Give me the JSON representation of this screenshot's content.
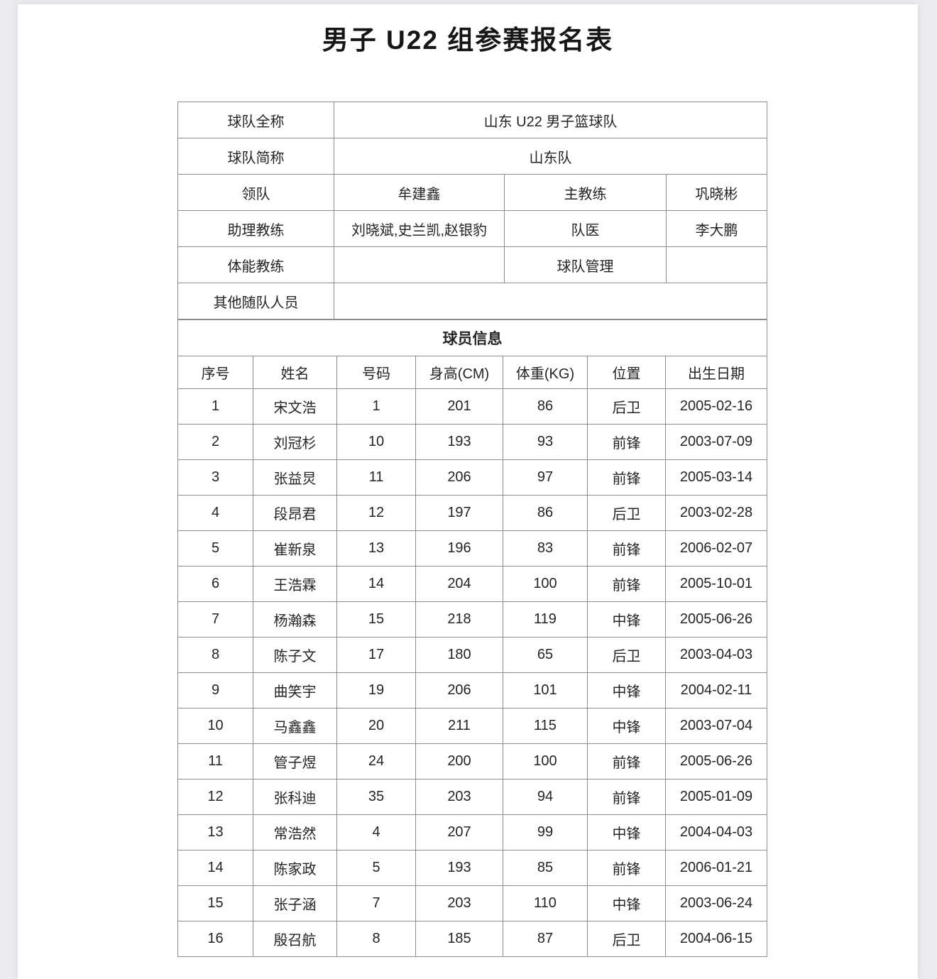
{
  "page": {
    "title": "男子 U22 组参赛报名表"
  },
  "colors": {
    "border": "#8d8d8d",
    "text": "#242424",
    "page_bg": "#ffffff",
    "backdrop": "#e9ebee"
  },
  "team_info": {
    "full_name_label": "球队全称",
    "full_name": "山东 U22 男子篮球队",
    "short_name_label": "球队简称",
    "short_name": "山东队",
    "leader_label": "领队",
    "leader": "牟建鑫",
    "head_coach_label": "主教练",
    "head_coach": "巩晓彬",
    "assistant_coach_label": "助理教练",
    "assistant_coach": "刘晓斌,史兰凯,赵银豹",
    "team_doctor_label": "队医",
    "team_doctor": "李大鹏",
    "fitness_coach_label": "体能教练",
    "fitness_coach": "",
    "team_manager_label": "球队管理",
    "team_manager": "",
    "other_staff_label": "其他随队人员",
    "other_staff": ""
  },
  "players": {
    "section_title": "球员信息",
    "headers": [
      "序号",
      "姓名",
      "号码",
      "身高(CM)",
      "体重(KG)",
      "位置",
      "出生日期"
    ],
    "rows": [
      {
        "no": "1",
        "name": "宋文浩",
        "number": "1",
        "height": "201",
        "weight": "86",
        "position": "后卫",
        "birth": "2005-02-16"
      },
      {
        "no": "2",
        "name": "刘冠杉",
        "number": "10",
        "height": "193",
        "weight": "93",
        "position": "前锋",
        "birth": "2003-07-09"
      },
      {
        "no": "3",
        "name": "张益炅",
        "number": "11",
        "height": "206",
        "weight": "97",
        "position": "前锋",
        "birth": "2005-03-14"
      },
      {
        "no": "4",
        "name": "段昂君",
        "number": "12",
        "height": "197",
        "weight": "86",
        "position": "后卫",
        "birth": "2003-02-28"
      },
      {
        "no": "5",
        "name": "崔新泉",
        "number": "13",
        "height": "196",
        "weight": "83",
        "position": "前锋",
        "birth": "2006-02-07"
      },
      {
        "no": "6",
        "name": "王浩霖",
        "number": "14",
        "height": "204",
        "weight": "100",
        "position": "前锋",
        "birth": "2005-10-01"
      },
      {
        "no": "7",
        "name": "杨瀚森",
        "number": "15",
        "height": "218",
        "weight": "119",
        "position": "中锋",
        "birth": "2005-06-26"
      },
      {
        "no": "8",
        "name": "陈子文",
        "number": "17",
        "height": "180",
        "weight": "65",
        "position": "后卫",
        "birth": "2003-04-03"
      },
      {
        "no": "9",
        "name": "曲笑宇",
        "number": "19",
        "height": "206",
        "weight": "101",
        "position": "中锋",
        "birth": "2004-02-11"
      },
      {
        "no": "10",
        "name": "马鑫鑫",
        "number": "20",
        "height": "211",
        "weight": "115",
        "position": "中锋",
        "birth": "2003-07-04"
      },
      {
        "no": "11",
        "name": "管子煜",
        "number": "24",
        "height": "200",
        "weight": "100",
        "position": "前锋",
        "birth": "2005-06-26"
      },
      {
        "no": "12",
        "name": "张科迪",
        "number": "35",
        "height": "203",
        "weight": "94",
        "position": "前锋",
        "birth": "2005-01-09"
      },
      {
        "no": "13",
        "name": "常浩然",
        "number": "4",
        "height": "207",
        "weight": "99",
        "position": "中锋",
        "birth": "2004-04-03"
      },
      {
        "no": "14",
        "name": "陈家政",
        "number": "5",
        "height": "193",
        "weight": "85",
        "position": "前锋",
        "birth": "2006-01-21"
      },
      {
        "no": "15",
        "name": "张子涵",
        "number": "7",
        "height": "203",
        "weight": "110",
        "position": "中锋",
        "birth": "2003-06-24"
      },
      {
        "no": "16",
        "name": "殷召航",
        "number": "8",
        "height": "185",
        "weight": "87",
        "position": "后卫",
        "birth": "2004-06-15"
      }
    ]
  }
}
